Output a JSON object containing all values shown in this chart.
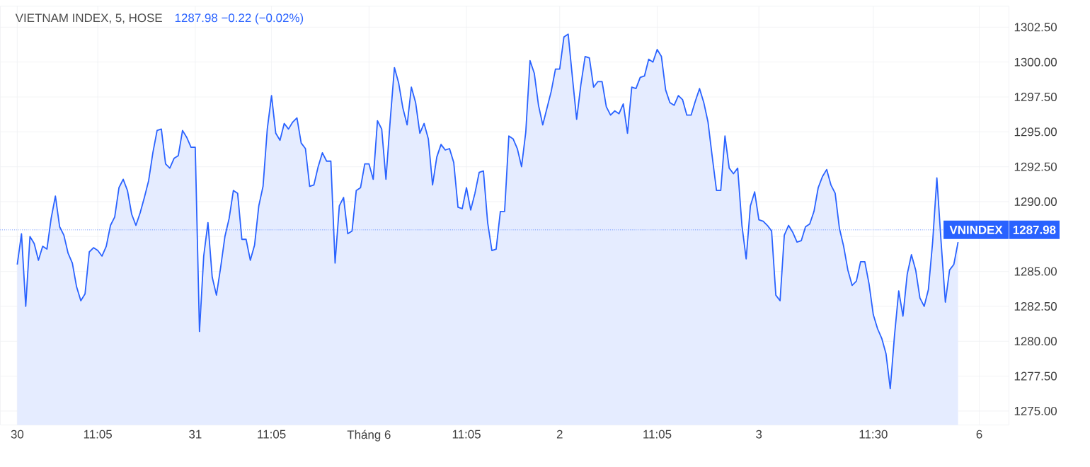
{
  "chart_data": {
    "type": "area",
    "title": "VIETNAM INDEX, 5, HOSE",
    "subtitle": "1287.98 −0.22 (−0.02%)",
    "color": "#2962ff",
    "categories": [
      "30",
      null,
      null,
      null,
      null,
      null,
      null,
      null,
      null,
      null,
      null,
      null,
      null,
      null,
      null,
      null,
      null,
      null,
      null,
      "11:05",
      null,
      null,
      null,
      null,
      null,
      null,
      null,
      null,
      null,
      null,
      null,
      null,
      null,
      null,
      null,
      null,
      null,
      null,
      null,
      null,
      null,
      null,
      "31",
      null,
      null,
      null,
      null,
      null,
      null,
      null,
      null,
      null,
      null,
      null,
      null,
      null,
      null,
      null,
      null,
      null,
      "11:05",
      null,
      null,
      null,
      null,
      null,
      null,
      null,
      null,
      null,
      null,
      null,
      null,
      null,
      null,
      null,
      null,
      null,
      null,
      null,
      null,
      null,
      null,
      "Tháng 6",
      null,
      null,
      null,
      null,
      null,
      null,
      null,
      null,
      null,
      null,
      null,
      null,
      null,
      null,
      null,
      null,
      null,
      null,
      null,
      null,
      null,
      null,
      "11:05",
      null,
      null,
      null,
      null,
      null,
      null,
      null,
      null,
      null,
      null,
      null,
      null,
      null,
      null,
      null,
      null,
      null,
      null,
      null,
      null,
      null,
      "2",
      null,
      null,
      null,
      null,
      null,
      null,
      null,
      null,
      null,
      null,
      null,
      null,
      null,
      null,
      null,
      null,
      null,
      null,
      null,
      null,
      null,
      null,
      "11:05",
      null,
      null,
      null,
      null,
      null,
      null,
      null,
      null,
      null,
      null,
      null,
      null,
      null,
      null,
      null,
      null,
      null,
      null,
      null,
      null,
      null,
      null,
      null,
      "3",
      null,
      null,
      null,
      null,
      null,
      null,
      null,
      null,
      null,
      null,
      null,
      null,
      null,
      null,
      null,
      null,
      null,
      null,
      null,
      null,
      null,
      null,
      null,
      null,
      null,
      null,
      "11:30",
      null,
      null,
      null,
      null,
      null,
      null,
      null,
      null,
      null,
      null,
      null,
      null,
      null,
      null,
      null,
      null,
      null,
      null,
      null,
      null,
      null,
      null,
      null,
      null,
      "6"
    ],
    "values": [
      1285.5,
      1287.7,
      1282.5,
      1287.5,
      1287.0,
      1285.8,
      1286.8,
      1286.6,
      1288.8,
      1290.4,
      1288.2,
      1287.6,
      1286.3,
      1285.6,
      1283.9,
      1282.9,
      1283.4,
      1286.4,
      1286.7,
      1286.5,
      1286.1,
      1286.8,
      1288.3,
      1288.9,
      1291.0,
      1291.6,
      1290.8,
      1289.1,
      1288.3,
      1289.2,
      1290.3,
      1291.5,
      1293.5,
      1295.1,
      1295.2,
      1292.7,
      1292.4,
      1293.1,
      1293.3,
      1295.1,
      1294.6,
      1293.9,
      1293.9,
      1280.7,
      1286.1,
      1288.5,
      1284.6,
      1283.3,
      1285.3,
      1287.5,
      1288.8,
      1290.8,
      1290.6,
      1287.3,
      1287.3,
      1285.8,
      1286.9,
      1289.7,
      1291.1,
      1295.2,
      1297.6,
      1294.9,
      1294.4,
      1295.6,
      1295.2,
      1295.7,
      1296.0,
      1294.2,
      1293.8,
      1291.1,
      1291.2,
      1292.5,
      1293.5,
      1292.9,
      1292.9,
      1285.6,
      1289.7,
      1290.3,
      1287.7,
      1287.9,
      1290.8,
      1291.0,
      1292.7,
      1292.7,
      1291.6,
      1295.8,
      1295.2,
      1291.6,
      1295.8,
      1299.6,
      1298.5,
      1296.7,
      1295.5,
      1298.2,
      1297.1,
      1294.9,
      1295.6,
      1294.5,
      1291.2,
      1293.2,
      1294.1,
      1293.7,
      1293.8,
      1292.8,
      1289.6,
      1289.5,
      1291.0,
      1289.4,
      1290.6,
      1292.1,
      1292.2,
      1288.5,
      1286.5,
      1286.6,
      1289.3,
      1289.3,
      1294.7,
      1294.5,
      1293.8,
      1292.5,
      1295.0,
      1300.1,
      1299.2,
      1296.9,
      1295.5,
      1296.7,
      1297.9,
      1299.5,
      1299.5,
      1301.8,
      1302.0,
      1298.9,
      1295.9,
      1298.4,
      1300.4,
      1300.3,
      1298.2,
      1298.6,
      1298.6,
      1296.8,
      1296.2,
      1296.5,
      1296.3,
      1297.0,
      1294.9,
      1298.2,
      1298.1,
      1298.9,
      1299.0,
      1300.2,
      1300.0,
      1300.9,
      1300.4,
      1298.0,
      1297.1,
      1296.9,
      1297.6,
      1297.3,
      1296.2,
      1296.2,
      1297.2,
      1298.1,
      1297.1,
      1295.7,
      1293.2,
      1290.8,
      1290.8,
      1294.7,
      1292.4,
      1292.0,
      1292.4,
      1288.3,
      1285.9,
      1289.7,
      1290.7,
      1288.7,
      1288.6,
      1288.3,
      1287.9,
      1283.3,
      1282.9,
      1287.6,
      1288.3,
      1287.8,
      1287.1,
      1287.2,
      1288.2,
      1288.4,
      1289.3,
      1291.0,
      1291.8,
      1292.3,
      1291.2,
      1290.6,
      1288.1,
      1286.8,
      1285.1,
      1284.0,
      1284.3,
      1285.7,
      1285.7,
      1284.1,
      1281.9,
      1280.9,
      1280.2,
      1279.1,
      1276.6,
      1280.4,
      1283.6,
      1281.8,
      1284.8,
      1286.2,
      1285.1,
      1283.1,
      1282.5,
      1283.7,
      1287.1,
      1291.7,
      1287.1,
      1282.8,
      1285.1,
      1285.5,
      1287.1,
      null,
      null,
      null,
      null,
      null
    ],
    "ylim": [
      1274,
      1304
    ],
    "yticks": [
      {
        "value": 1275,
        "label": "1275.00"
      },
      {
        "value": 1277.5,
        "label": "1277.50"
      },
      {
        "value": 1280,
        "label": "1280.00"
      },
      {
        "value": 1282.5,
        "label": "1282.50"
      },
      {
        "value": 1285,
        "label": "1285.00"
      },
      {
        "value": 1287.5,
        "label": null
      },
      {
        "value": 1290,
        "label": "1290.00"
      },
      {
        "value": 1292.5,
        "label": "1292.50"
      },
      {
        "value": 1295,
        "label": "1295.00"
      },
      {
        "value": 1297.5,
        "label": "1297.50"
      },
      {
        "value": 1300,
        "label": "1300.00"
      },
      {
        "value": 1302.5,
        "label": "1302.50"
      }
    ],
    "grid": true,
    "ref_lines": [
      {
        "axis": "y",
        "value": 1287.98,
        "label": "1287.98",
        "color": "#2962ff",
        "line_style": "dotted"
      }
    ],
    "annotations": [
      {
        "text": "VNINDEX",
        "y": 1287.98
      }
    ]
  }
}
